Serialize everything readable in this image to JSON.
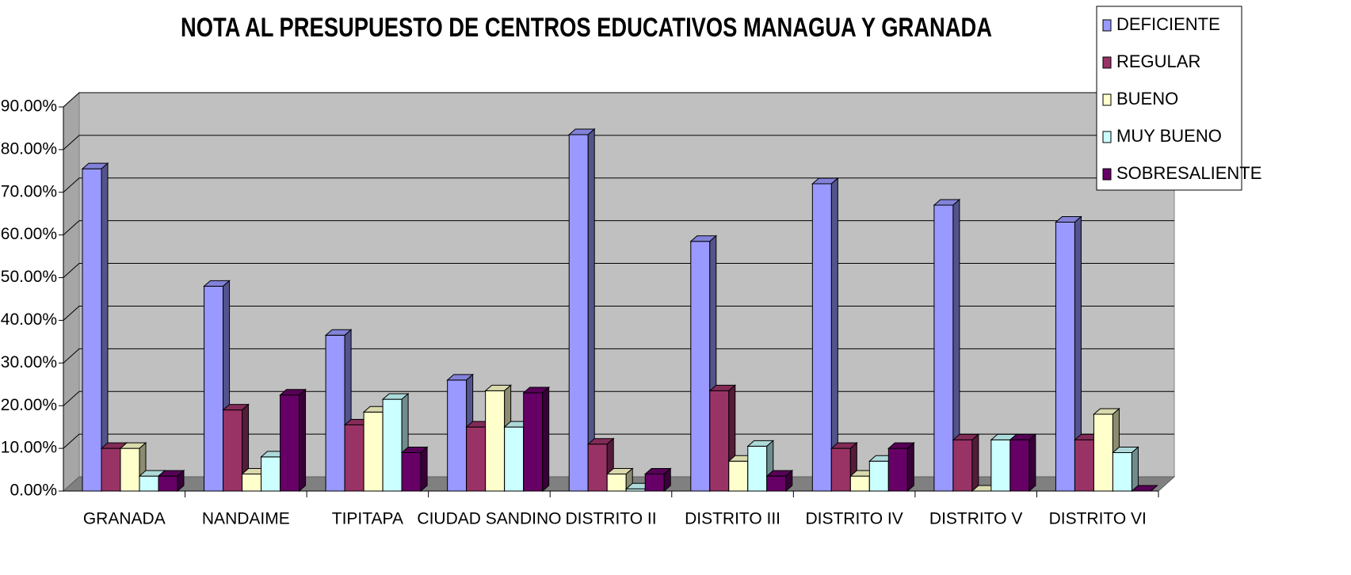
{
  "chart_data": {
    "type": "bar3d",
    "title": "NOTA AL PRESUPUESTO DE CENTROS EDUCATIVOS MANAGUA Y GRANADA",
    "categories": [
      "GRANADA",
      "NANDAIME",
      "TIPITAPA",
      "CIUDAD SANDINO",
      "DISTRITO II",
      "DISTRITO III",
      "DISTRITO IV",
      "DISTRITO V",
      "DISTRITO VI"
    ],
    "series": [
      {
        "name": "DEFICIENTE",
        "color": "#9999ff",
        "values": [
          75.5,
          48,
          36.5,
          26,
          83.5,
          58.5,
          72,
          67,
          63
        ]
      },
      {
        "name": "REGULAR",
        "color": "#993366",
        "values": [
          10,
          19,
          15.5,
          15,
          11,
          23.5,
          10,
          12,
          12
        ]
      },
      {
        "name": "BUENO",
        "color": "#ffffcc",
        "values": [
          10,
          4,
          18.5,
          23.5,
          4,
          7,
          3.5,
          0,
          18
        ]
      },
      {
        "name": "MUY BUENO",
        "color": "#ccffff",
        "values": [
          3.5,
          8,
          21.5,
          15,
          0.5,
          10.5,
          7,
          12,
          9
        ]
      },
      {
        "name": "SOBRESALIENTE",
        "color": "#660066",
        "values": [
          3.5,
          22.5,
          9,
          23,
          4,
          3.5,
          10,
          12,
          0
        ]
      }
    ],
    "ylim": [
      0,
      90
    ],
    "yticks": [
      {
        "value": 0,
        "label": "0.00%"
      },
      {
        "value": 10,
        "label": "10.00%"
      },
      {
        "value": 20,
        "label": "20.00%"
      },
      {
        "value": 30,
        "label": "30.00%"
      },
      {
        "value": 40,
        "label": "40.00%"
      },
      {
        "value": 50,
        "label": "50.00%"
      },
      {
        "value": 60,
        "label": "60.00%"
      },
      {
        "value": 70,
        "label": "70.00%"
      },
      {
        "value": 80,
        "label": "80.00%"
      },
      {
        "value": 90,
        "label": "90.00%"
      }
    ],
    "grid": true,
    "legend": "top-right"
  }
}
